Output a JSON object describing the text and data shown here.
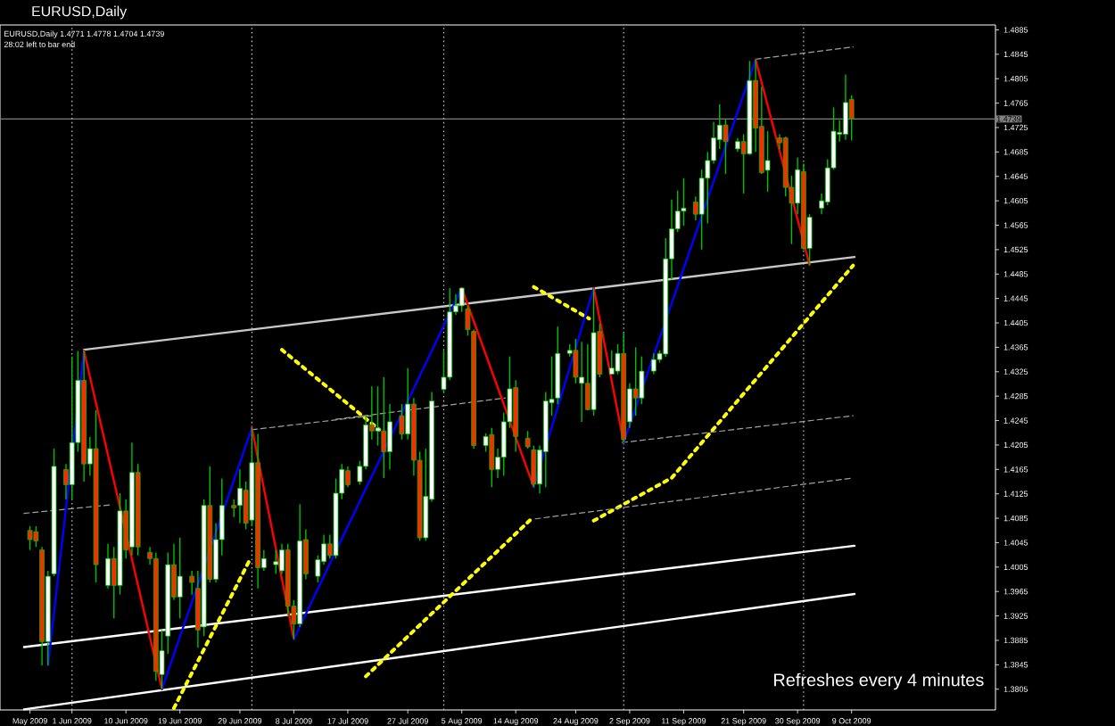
{
  "chart_data": {
    "type": "candlestick",
    "title": "EURUSD,Daily",
    "subtitle": "EURUSD,Daily 1.4771 1.4778 1.4704 1.4739",
    "annotations": [
      "28:02 left to bar end",
      "Refreshes every 4 minutes"
    ],
    "x": [
      "2009-05-25",
      "2009-05-26",
      "2009-05-27",
      "2009-05-28",
      "2009-05-29",
      "2009-05-31",
      "2009-06-01",
      "2009-06-02",
      "2009-06-03",
      "2009-06-04",
      "2009-06-05",
      "2009-06-07",
      "2009-06-08",
      "2009-06-09",
      "2009-06-10",
      "2009-06-11",
      "2009-06-12",
      "2009-06-14",
      "2009-06-15",
      "2009-06-16",
      "2009-06-17",
      "2009-06-18",
      "2009-06-19",
      "2009-06-21",
      "2009-06-22",
      "2009-06-23",
      "2009-06-24",
      "2009-06-25",
      "2009-06-26",
      "2009-06-28",
      "2009-06-29",
      "2009-06-30",
      "2009-07-01",
      "2009-07-02",
      "2009-07-03",
      "2009-07-05",
      "2009-07-06",
      "2009-07-07",
      "2009-07-08",
      "2009-07-09",
      "2009-07-10",
      "2009-07-12",
      "2009-07-13",
      "2009-07-14",
      "2009-07-15",
      "2009-07-16",
      "2009-07-17",
      "2009-07-19",
      "2009-07-20",
      "2009-07-21",
      "2009-07-22",
      "2009-07-23",
      "2009-07-24",
      "2009-07-26",
      "2009-07-27",
      "2009-07-28",
      "2009-07-29",
      "2009-07-30",
      "2009-07-31",
      "2009-08-02",
      "2009-08-03",
      "2009-08-04",
      "2009-08-05",
      "2009-08-06",
      "2009-08-07",
      "2009-08-09",
      "2009-08-10",
      "2009-08-11",
      "2009-08-12",
      "2009-08-13",
      "2009-08-14",
      "2009-08-16",
      "2009-08-17",
      "2009-08-18",
      "2009-08-19",
      "2009-08-20",
      "2009-08-21",
      "2009-08-23",
      "2009-08-24",
      "2009-08-25",
      "2009-08-26",
      "2009-08-27",
      "2009-08-28",
      "2009-08-30",
      "2009-08-31",
      "2009-09-01",
      "2009-09-02",
      "2009-09-03",
      "2009-09-04",
      "2009-09-06",
      "2009-09-07",
      "2009-09-08",
      "2009-09-09",
      "2009-09-10",
      "2009-09-11",
      "2009-09-13",
      "2009-09-14",
      "2009-09-15",
      "2009-09-16",
      "2009-09-17",
      "2009-09-18",
      "2009-09-20",
      "2009-09-21",
      "2009-09-22",
      "2009-09-23",
      "2009-09-24",
      "2009-09-25",
      "2009-09-27",
      "2009-09-28",
      "2009-09-29",
      "2009-09-30",
      "2009-10-01",
      "2009-10-02",
      "2009-10-04",
      "2009-10-05",
      "2009-10-06",
      "2009-10-07",
      "2009-10-08",
      "2009-10-09"
    ],
    "ohlc": [
      [
        1.4065,
        1.4072,
        1.4033,
        1.405
      ],
      [
        1.4063,
        1.4072,
        1.4038,
        1.4048
      ],
      [
        1.4033,
        1.4038,
        1.3844,
        1.3883
      ],
      [
        1.3883,
        1.3999,
        1.3844,
        1.399
      ],
      [
        1.3994,
        1.4199,
        1.399,
        1.417
      ],
      [
        1.4165,
        1.4174,
        1.4116,
        1.414
      ],
      [
        1.414,
        1.435,
        1.4116,
        1.4209
      ],
      [
        1.4209,
        1.4359,
        1.4194,
        1.4311
      ],
      [
        1.4311,
        1.4359,
        1.4145,
        1.4174
      ],
      [
        1.4174,
        1.4218,
        1.4155,
        1.4199
      ],
      [
        1.4199,
        1.4262,
        1.398,
        1.4009
      ],
      [
        1.3975,
        1.4043,
        1.397,
        1.4019
      ],
      [
        1.4019,
        1.4038,
        1.3921,
        1.3975
      ],
      [
        1.3975,
        1.4126,
        1.396,
        1.4097
      ],
      [
        1.4097,
        1.4116,
        1.4019,
        1.4033
      ],
      [
        1.4038,
        1.4209,
        1.4024,
        1.416
      ],
      [
        1.416,
        1.4174,
        1.4024,
        1.4038
      ],
      [
        1.4029,
        1.4038,
        1.4009,
        1.4019
      ],
      [
        1.4019,
        1.4029,
        1.3819,
        1.3834
      ],
      [
        1.3829,
        1.3902,
        1.3805,
        1.3868
      ],
      [
        1.3892,
        1.4029,
        1.3863,
        1.4009
      ],
      [
        1.4009,
        1.4043,
        1.3951,
        1.3956
      ],
      [
        1.3956,
        1.4053,
        1.3921,
        1.399
      ],
      [
        1.399,
        1.3999,
        1.396,
        1.398
      ],
      [
        1.397,
        1.3999,
        1.3873,
        1.3902
      ],
      [
        1.3907,
        1.4116,
        1.3892,
        1.4106
      ],
      [
        1.4106,
        1.417,
        1.398,
        1.3985
      ],
      [
        1.3985,
        1.4077,
        1.398,
        1.405
      ],
      [
        1.405,
        1.415,
        1.4024,
        1.4106
      ],
      [
        1.4106,
        1.4116,
        1.4087,
        1.4102
      ],
      [
        1.4106,
        1.4165,
        1.4077,
        1.4134
      ],
      [
        1.4131,
        1.4145,
        1.4067,
        1.4077
      ],
      [
        1.4082,
        1.4233,
        1.4072,
        1.4176
      ],
      [
        1.4176,
        1.4223,
        1.397,
        1.4004
      ],
      [
        1.4004,
        1.4033,
        1.3999,
        1.4019
      ],
      [
        1.4009,
        1.4033,
        1.3994,
        1.4014
      ],
      [
        1.3999,
        1.4043,
        1.3994,
        1.4033
      ],
      [
        1.4033,
        1.4043,
        1.3926,
        1.3941
      ],
      [
        1.3941,
        1.3951,
        1.3887,
        1.3912
      ],
      [
        1.3912,
        1.4108,
        1.3907,
        1.4048
      ],
      [
        1.405,
        1.4067,
        1.3985,
        1.3994
      ],
      [
        1.399,
        1.4024,
        1.398,
        1.4017
      ],
      [
        1.4014,
        1.4058,
        1.4009,
        1.4043
      ],
      [
        1.4043,
        1.4058,
        1.4019,
        1.4024
      ],
      [
        1.4024,
        1.415,
        1.4019,
        1.4126
      ],
      [
        1.4126,
        1.4174,
        1.4116,
        1.4165
      ],
      [
        1.4163,
        1.417,
        1.4136,
        1.414
      ],
      [
        1.4145,
        1.4179,
        1.414,
        1.417
      ],
      [
        1.417,
        1.4252,
        1.4165,
        1.4238
      ],
      [
        1.4238,
        1.4301,
        1.4214,
        1.4228
      ],
      [
        1.4228,
        1.4301,
        1.4204,
        1.4233
      ],
      [
        1.4228,
        1.4316,
        1.4151,
        1.4194
      ],
      [
        1.4194,
        1.4272,
        1.4165,
        1.4243
      ],
      [
        1.4253,
        1.4272,
        1.4214,
        1.4223
      ],
      [
        1.4223,
        1.4331,
        1.4214,
        1.4272
      ],
      [
        1.4272,
        1.4282,
        1.4155,
        1.418
      ],
      [
        1.418,
        1.4194,
        1.4048,
        1.4053
      ],
      [
        1.4053,
        1.4199,
        1.4048,
        1.4121
      ],
      [
        1.4116,
        1.4292,
        1.4112,
        1.4277
      ],
      [
        1.4296,
        1.436,
        1.4292,
        1.4316
      ],
      [
        1.4316,
        1.4462,
        1.4311,
        1.4423
      ],
      [
        1.4423,
        1.4452,
        1.4418,
        1.4433
      ],
      [
        1.4433,
        1.4462,
        1.4423,
        1.4462
      ],
      [
        1.4428,
        1.4433,
        1.4384,
        1.4394
      ],
      [
        1.4391,
        1.4394,
        1.4199,
        1.4204
      ],
      [
        1.4204,
        1.4224,
        1.4194,
        1.4219
      ],
      [
        1.4222,
        1.4233,
        1.4136,
        1.4165
      ],
      [
        1.4165,
        1.4199,
        1.4151,
        1.4185
      ],
      [
        1.4185,
        1.4258,
        1.4155,
        1.4243
      ],
      [
        1.4243,
        1.435,
        1.4233,
        1.4297
      ],
      [
        1.4299,
        1.4311,
        1.4194,
        1.4219
      ],
      [
        1.4216,
        1.4228,
        1.4199,
        1.4202
      ],
      [
        1.4197,
        1.4204,
        1.4136,
        1.4141
      ],
      [
        1.4141,
        1.4204,
        1.4126,
        1.4197
      ],
      [
        1.4194,
        1.4292,
        1.4136,
        1.4277
      ],
      [
        1.4274,
        1.435,
        1.4253,
        1.428
      ],
      [
        1.4282,
        1.4399,
        1.4272,
        1.4355
      ],
      [
        1.4355,
        1.437,
        1.435,
        1.436
      ],
      [
        1.436,
        1.4379,
        1.4306,
        1.4316
      ],
      [
        1.4306,
        1.4374,
        1.4243,
        1.4316
      ],
      [
        1.4306,
        1.437,
        1.4262,
        1.4263
      ],
      [
        1.4263,
        1.4462,
        1.4253,
        1.4389
      ],
      [
        1.4391,
        1.4404,
        1.4316,
        1.4321
      ],
      [
        1.4321,
        1.436,
        1.4321,
        1.4331
      ],
      [
        1.4326,
        1.437,
        1.4321,
        1.4355
      ],
      [
        1.4355,
        1.4389,
        1.4209,
        1.4214
      ],
      [
        1.4243,
        1.4306,
        1.4233,
        1.4297
      ],
      [
        1.4297,
        1.4365,
        1.4253,
        1.4282
      ],
      [
        1.4282,
        1.435,
        1.4272,
        1.4326
      ],
      [
        1.4326,
        1.4355,
        1.4321,
        1.4345
      ],
      [
        1.4345,
        1.436,
        1.434,
        1.4355
      ],
      [
        1.4354,
        1.4544,
        1.4349,
        1.451
      ],
      [
        1.451,
        1.4607,
        1.4476,
        1.4559
      ],
      [
        1.4559,
        1.4622,
        1.4554,
        1.4588
      ],
      [
        1.4588,
        1.4642,
        1.4564,
        1.4593
      ],
      [
        1.4603,
        1.4612,
        1.4573,
        1.4583
      ],
      [
        1.4583,
        1.4656,
        1.4525,
        1.4642
      ],
      [
        1.4642,
        1.4685,
        1.4568,
        1.4671
      ],
      [
        1.4671,
        1.4734,
        1.4666,
        1.4708
      ],
      [
        1.4705,
        1.4763,
        1.469,
        1.4729
      ],
      [
        1.4729,
        1.4739,
        1.4649,
        1.4702
      ],
      [
        1.469,
        1.4708,
        1.4685,
        1.4702
      ],
      [
        1.4702,
        1.4714,
        1.4617,
        1.4682
      ],
      [
        1.4682,
        1.4834,
        1.468,
        1.4802
      ],
      [
        1.4802,
        1.4836,
        1.4685,
        1.4724
      ],
      [
        1.4727,
        1.4792,
        1.4649,
        1.4651
      ],
      [
        1.4655,
        1.4719,
        1.462,
        1.4671
      ],
      [
        1.4708,
        1.4714,
        1.469,
        1.47
      ],
      [
        1.4708,
        1.471,
        1.4612,
        1.4627
      ],
      [
        1.4627,
        1.4646,
        1.4534,
        1.4601
      ],
      [
        1.4601,
        1.4676,
        1.4583,
        1.4656
      ],
      [
        1.4653,
        1.4666,
        1.4525,
        1.4527
      ],
      [
        1.4527,
        1.4583,
        1.45,
        1.4578
      ],
      [
        1.4593,
        1.4617,
        1.4583,
        1.4605
      ],
      [
        1.4603,
        1.4673,
        1.4598,
        1.4659
      ],
      [
        1.4659,
        1.4758,
        1.4656,
        1.4719
      ],
      [
        1.4714,
        1.4737,
        1.4702,
        1.4717
      ],
      [
        1.4714,
        1.4812,
        1.4705,
        1.4766
      ],
      [
        1.4771,
        1.4778,
        1.4704,
        1.4739
      ]
    ],
    "color": "#00c000",
    "colors": [
      "#ff2a00",
      "#ff2a00",
      "#ff2a00",
      "#ffffff",
      "#ffffff",
      "#ff2a00",
      "#ffffff",
      "#ffffff",
      "#ff2a00",
      "#ffffff",
      "#ff2a00",
      "#ffffff",
      "#ff2a00",
      "#ffffff",
      "#ff2a00",
      "#ffffff",
      "#ff2a00",
      "#ff2a00",
      "#ff2a00",
      "#ffffff",
      "#ffffff",
      "#ff2a00",
      "#ffffff",
      "#ff2a00",
      "#ff2a00",
      "#ffffff",
      "#ff2a00",
      "#ffffff",
      "#ffffff",
      "#ff2a00",
      "#ffffff",
      "#ff2a00",
      "#ffffff",
      "#ff2a00",
      "#ffffff",
      "#ffffff",
      "#ffffff",
      "#ff2a00",
      "#ff2a00",
      "#ffffff",
      "#ff2a00",
      "#ffffff",
      "#ffffff",
      "#ff2a00",
      "#ffffff",
      "#ffffff",
      "#ff2a00",
      "#ffffff",
      "#ffffff",
      "#ff2a00",
      "#ffffff",
      "#ff2a00",
      "#ffffff",
      "#ff2a00",
      "#ffffff",
      "#ff2a00",
      "#ff2a00",
      "#ffffff",
      "#ffffff",
      "#ffffff",
      "#ffffff",
      "#ffffff",
      "#ffffff",
      "#ff2a00",
      "#ff2a00",
      "#ffffff",
      "#ff2a00",
      "#ffffff",
      "#ffffff",
      "#ffffff",
      "#ff2a00",
      "#ff2a00",
      "#ff2a00",
      "#ffffff",
      "#ffffff",
      "#ffffff",
      "#ffffff",
      "#ffffff",
      "#ff2a00",
      "#ffffff",
      "#ff2a00",
      "#ffffff",
      "#ff2a00",
      "#ffffff",
      "#ffffff",
      "#ff2a00",
      "#ffffff",
      "#ff2a00",
      "#ffffff",
      "#ffffff",
      "#ffffff",
      "#ffffff",
      "#ffffff",
      "#ffffff",
      "#ffffff",
      "#ff2a00",
      "#ffffff",
      "#ffffff",
      "#ffffff",
      "#ffffff",
      "#ff2a00",
      "#ffffff",
      "#ff2a00",
      "#ffffff",
      "#ff2a00",
      "#ff2a00",
      "#ffffff",
      "#ff2a00",
      "#ff2a00",
      "#ff2a00",
      "#ffffff",
      "#ff2a00",
      "#ffffff",
      "#ffffff",
      "#ffffff",
      "#ffffff",
      "#ffffff",
      "#ffffff",
      "#ff2a00"
    ],
    "series": [
      {
        "type": "line",
        "x": [
          "2009-06-03",
          "2009-10-09T12:00"
        ],
        "values": [
          1.4361,
          1.4513
        ],
        "color": "#c8c8c8",
        "line_style": "solid"
      },
      {
        "type": "line",
        "x": [
          "2009-05-24",
          "2009-10-09T12:00"
        ],
        "values": [
          1.3874,
          1.404
        ],
        "color": "#ffffff",
        "line_style": "solid"
      },
      {
        "type": "line",
        "x": [
          "2009-05-24",
          "2009-10-09T12:00"
        ],
        "values": [
          1.3772,
          1.3961
        ],
        "color": "#ffffff",
        "line_style": "solid"
      },
      {
        "type": "line",
        "x": [
          "2009-06-18",
          "2009-06-30T12:00"
        ],
        "values": [
          1.3774,
          1.4014
        ],
        "color": "#ffff00",
        "line_style": "dotted"
      },
      {
        "type": "line",
        "x": [
          "2009-07-06",
          "2009-07-22T06:00"
        ],
        "values": [
          1.4361,
          1.423
        ],
        "color": "#ffff00",
        "line_style": "dotted"
      },
      {
        "type": "line",
        "x": [
          "2009-07-20",
          "2009-08-16T12:00"
        ],
        "values": [
          1.3826,
          1.4083
        ],
        "color": "#ffff00",
        "line_style": "dotted"
      },
      {
        "type": "line",
        "x": [
          "2009-08-17",
          "2009-08-26T06:00"
        ],
        "values": [
          1.4464,
          1.4412
        ],
        "color": "#ffff00",
        "line_style": "dotted"
      },
      {
        "type": "line",
        "x": [
          "2009-08-27",
          "2009-09-09",
          "2009-10-09T06:00"
        ],
        "values": [
          1.4081,
          1.4151,
          1.4499
        ],
        "color": "#ffff00",
        "line_style": "dotted"
      },
      {
        "type": "line",
        "x": [
          "2009-05-24",
          "2009-06-07T12:00"
        ],
        "values": [
          1.4093,
          1.4107
        ],
        "color": "#a0a0a0",
        "line_style": "dashed"
      },
      {
        "type": "line",
        "x": [
          "2009-07-01",
          "2009-07-21"
        ],
        "values": [
          1.423,
          1.4253
        ],
        "color": "#a0a0a0",
        "line_style": "dashed"
      },
      {
        "type": "line",
        "x": [
          "2009-07-15",
          "2009-08-12T06:00"
        ],
        "values": [
          1.4247,
          1.4282
        ],
        "color": "#a0a0a0",
        "line_style": "dashed"
      },
      {
        "type": "line",
        "x": [
          "2009-08-17T06:00",
          "2009-10-09T06:00"
        ],
        "values": [
          1.4084,
          1.4151
        ],
        "color": "#a0a0a0",
        "line_style": "dashed"
      },
      {
        "type": "line",
        "x": [
          "2009-08-31T18:00",
          "2009-10-09T06:00"
        ],
        "values": [
          1.4209,
          1.4253
        ],
        "color": "#a0a0a0",
        "line_style": "dashed"
      },
      {
        "type": "line",
        "x": [
          "2009-09-23",
          "2009-10-09T06:00"
        ],
        "values": [
          1.4837,
          1.4857
        ],
        "color": "#a0a0a0",
        "line_style": "dashed"
      },
      {
        "type": "line",
        "x": [
          "2009-05-28",
          "2009-06-03"
        ],
        "values": [
          1.3844,
          1.4359
        ],
        "color": "#0000ff",
        "line_style": "solid"
      },
      {
        "type": "line",
        "x": [
          "2009-06-03",
          "2009-06-16"
        ],
        "values": [
          1.4359,
          1.3805
        ],
        "color": "#ff0000",
        "line_style": "solid"
      },
      {
        "type": "line",
        "x": [
          "2009-06-16",
          "2009-07-01"
        ],
        "values": [
          1.3805,
          1.4233
        ],
        "color": "#0000ff",
        "line_style": "solid"
      },
      {
        "type": "line",
        "x": [
          "2009-07-01",
          "2009-07-08"
        ],
        "values": [
          1.4233,
          1.3887
        ],
        "color": "#ff0000",
        "line_style": "solid"
      },
      {
        "type": "line",
        "x": [
          "2009-07-08",
          "2009-08-05"
        ],
        "values": [
          1.3887,
          1.4462
        ],
        "color": "#0000ff",
        "line_style": "solid"
      },
      {
        "type": "line",
        "x": [
          "2009-08-05",
          "2009-08-17"
        ],
        "values": [
          1.4462,
          1.4136
        ],
        "color": "#ff0000",
        "line_style": "solid"
      },
      {
        "type": "line",
        "x": [
          "2009-08-17",
          "2009-08-27"
        ],
        "values": [
          1.4136,
          1.4462
        ],
        "color": "#0000ff",
        "line_style": "solid"
      },
      {
        "type": "line",
        "x": [
          "2009-08-27",
          "2009-09-01"
        ],
        "values": [
          1.4462,
          1.4209
        ],
        "color": "#ff0000",
        "line_style": "solid"
      },
      {
        "type": "line",
        "x": [
          "2009-09-01",
          "2009-09-23"
        ],
        "values": [
          1.4209,
          1.4836
        ],
        "color": "#0000ff",
        "line_style": "solid"
      },
      {
        "type": "line",
        "x": [
          "2009-09-23",
          "2009-10-02"
        ],
        "values": [
          1.4836,
          1.45
        ],
        "color": "#ff0000",
        "line_style": "solid"
      }
    ],
    "ref_lines": [
      {
        "axis": "y",
        "value": 1.4739,
        "label": "1.4739",
        "color": "#808080",
        "line_style": "solid"
      },
      {
        "axis": "x",
        "value": "2009-06-01",
        "color": "#c0c0c0",
        "line_style": "dotted"
      },
      {
        "axis": "x",
        "value": "2009-07-01",
        "color": "#c0c0c0",
        "line_style": "dotted"
      },
      {
        "axis": "x",
        "value": "2009-08-02",
        "color": "#c0c0c0",
        "line_style": "dotted"
      },
      {
        "axis": "x",
        "value": "2009-09-01",
        "color": "#c0c0c0",
        "line_style": "dotted"
      },
      {
        "axis": "x",
        "value": "2009-10-01",
        "color": "#c0c0c0",
        "line_style": "dotted"
      }
    ],
    "xlim": [
      "2009-05-20",
      "2009-11-02"
    ],
    "xticks": [
      {
        "value": "2009-05-25",
        "label": "May 2009"
      },
      {
        "value": "2009-06-01",
        "label": "1 Jun 2009"
      },
      {
        "value": "2009-06-10",
        "label": "10 Jun 2009"
      },
      {
        "value": "2009-06-19",
        "label": "19 Jun 2009"
      },
      {
        "value": "2009-06-29",
        "label": "29 Jun 2009"
      },
      {
        "value": "2009-07-08",
        "label": "8 Jul 2009"
      },
      {
        "value": "2009-07-17",
        "label": "17 Jul 2009"
      },
      {
        "value": "2009-07-27",
        "label": "27 Jul 2009"
      },
      {
        "value": "2009-08-05",
        "label": "5 Aug 2009"
      },
      {
        "value": "2009-08-14",
        "label": "14 Aug 2009"
      },
      {
        "value": "2009-08-24",
        "label": "24 Aug 2009"
      },
      {
        "value": "2009-09-02",
        "label": "2 Sep 2009"
      },
      {
        "value": "2009-09-11",
        "label": "11 Sep 2009"
      },
      {
        "value": "2009-09-21",
        "label": "21 Sep 2009"
      },
      {
        "value": "2009-09-30",
        "label": "30 Sep 2009"
      },
      {
        "value": "2009-10-09",
        "label": "9 Oct 2009"
      }
    ],
    "ylim": [
      1.3771,
      1.4893
    ],
    "yticks": [
      1.3805,
      1.3845,
      1.3885,
      1.3925,
      1.3965,
      1.4005,
      1.4045,
      1.4085,
      1.4125,
      1.4165,
      1.4205,
      1.4245,
      1.4285,
      1.4325,
      1.4365,
      1.4405,
      1.4445,
      1.4485,
      1.4525,
      1.4565,
      1.4605,
      1.4645,
      1.4685,
      1.4725,
      1.4765,
      1.4805,
      1.4845,
      1.4885
    ]
  }
}
